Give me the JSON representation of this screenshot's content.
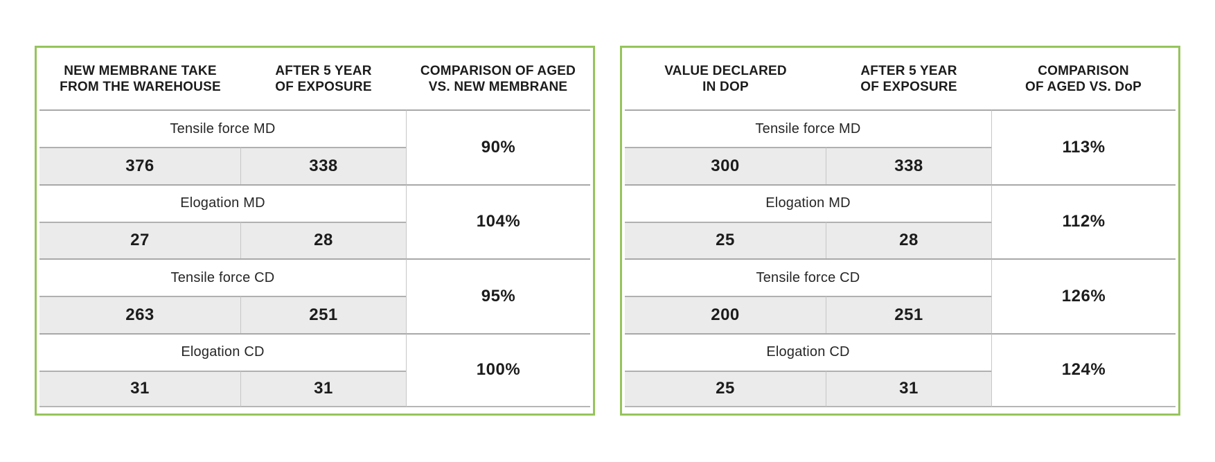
{
  "colors": {
    "frame_green": "#96c45b",
    "value_row_gray": "#ebebeb",
    "rule_dark": "#a8a8a8",
    "rule_light": "#c6c6c6",
    "text": "#1c1c1c"
  },
  "tables": [
    {
      "id": "aged-vs-new-membrane",
      "headers": [
        [
          "NEW MEMBRANE TAKE",
          "FROM THE WAREHOUSE"
        ],
        [
          "AFTER 5 YEAR",
          "OF EXPOSURE"
        ],
        [
          "COMPARISON OF AGED",
          "VS. NEW MEMBRANE"
        ]
      ],
      "rows": [
        {
          "label": "Tensile force MD",
          "values": [
            "376",
            "338"
          ],
          "comparison": "90%"
        },
        {
          "label": "Elogation MD",
          "values": [
            "27",
            "28"
          ],
          "comparison": "104%"
        },
        {
          "label": "Tensile force CD",
          "values": [
            "263",
            "251"
          ],
          "comparison": "95%"
        },
        {
          "label": "Elogation CD",
          "values": [
            "31",
            "31"
          ],
          "comparison": "100%"
        }
      ]
    },
    {
      "id": "aged-vs-dop",
      "headers": [
        [
          "VALUE DECLARED",
          "IN DOP"
        ],
        [
          "AFTER 5 YEAR",
          "OF EXPOSURE"
        ],
        [
          "COMPARISON",
          "OF AGED VS. DoP"
        ]
      ],
      "rows": [
        {
          "label": "Tensile force MD",
          "values": [
            "300",
            "338"
          ],
          "comparison": "113%"
        },
        {
          "label": "Elogation MD",
          "values": [
            "25",
            "28"
          ],
          "comparison": "112%"
        },
        {
          "label": "Tensile force CD",
          "values": [
            "200",
            "251"
          ],
          "comparison": "126%"
        },
        {
          "label": "Elogation CD",
          "values": [
            "25",
            "31"
          ],
          "comparison": "124%"
        }
      ]
    }
  ]
}
